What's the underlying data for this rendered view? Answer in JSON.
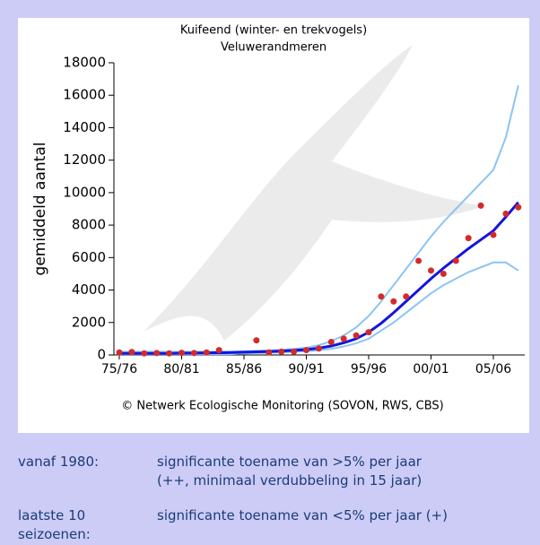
{
  "chart_data": {
    "type": "line",
    "title": "Kuifeend (winter- en trekvogels)",
    "subtitle": "Veluwerandmeren",
    "ylabel": "gemiddeld aantal",
    "source": "© Netwerk Ecologische Monitoring (SOVON, RWS, CBS)",
    "categories": [
      "75/76",
      null,
      null,
      null,
      null,
      "80/81",
      null,
      null,
      null,
      null,
      "85/86",
      null,
      null,
      null,
      null,
      "90/91",
      null,
      null,
      null,
      null,
      "95/96",
      null,
      null,
      null,
      null,
      "00/01",
      null,
      null,
      null,
      null,
      "05/06",
      null,
      null
    ],
    "ylim": [
      0,
      18000
    ],
    "yticks": [
      0,
      2000,
      4000,
      6000,
      8000,
      10000,
      12000,
      14000,
      16000,
      18000
    ],
    "series": [
      {
        "style": "line",
        "color": "#8cc4f4",
        "values": [
          200,
          200,
          200,
          200,
          200,
          200,
          200,
          200,
          200,
          200,
          230,
          250,
          280,
          320,
          370,
          450,
          600,
          850,
          1200,
          1700,
          2400,
          3300,
          4300,
          5300,
          6300,
          7300,
          8200,
          9000,
          9800,
          10600,
          11400,
          13400,
          16600
        ]
      },
      {
        "style": "line",
        "color": "#8cc4f4",
        "values": [
          50,
          50,
          50,
          50,
          50,
          50,
          50,
          50,
          50,
          50,
          100,
          120,
          140,
          160,
          190,
          230,
          290,
          380,
          520,
          720,
          1000,
          1500,
          2000,
          2600,
          3200,
          3800,
          4300,
          4700,
          5100,
          5400,
          5700,
          5700,
          5200
        ]
      },
      {
        "style": "line",
        "color": "#1414e0",
        "values": [
          100,
          100,
          100,
          100,
          100,
          110,
          120,
          130,
          140,
          150,
          170,
          190,
          210,
          240,
          280,
          330,
          420,
          550,
          750,
          1000,
          1400,
          1950,
          2600,
          3300,
          4000,
          4700,
          5350,
          5950,
          6550,
          7100,
          7650,
          8500,
          9400
        ]
      },
      {
        "style": "dots",
        "color": "#d42a2a",
        "values": [
          150,
          180,
          100,
          120,
          100,
          130,
          120,
          150,
          300,
          null,
          null,
          900,
          150,
          200,
          200,
          300,
          400,
          800,
          1000,
          1200,
          1400,
          3600,
          3300,
          3600,
          5800,
          5200,
          5000,
          5800,
          7200,
          9200,
          7400,
          8700,
          9100
        ]
      }
    ]
  },
  "notes": [
    {
      "label": "vanaf 1980:",
      "lines": [
        "significante toename van >5% per jaar",
        "(++, minimaal verdubbeling in 15 jaar)"
      ]
    },
    {
      "label": "laatste 10 seizoenen:",
      "lines": [
        "significante toename van <5% per jaar (+)"
      ]
    }
  ]
}
